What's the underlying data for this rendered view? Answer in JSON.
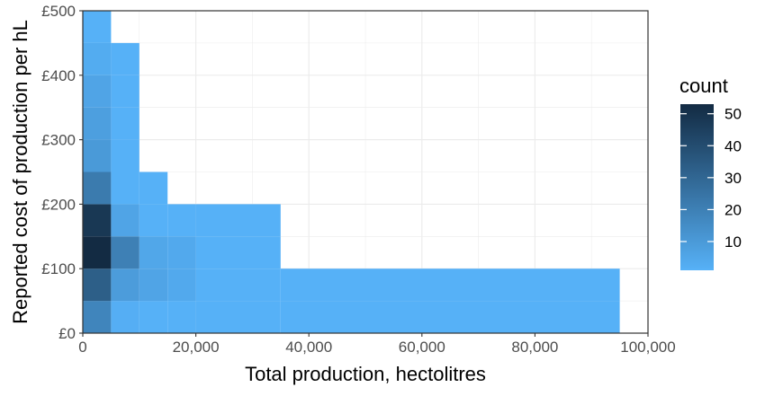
{
  "chart_data": {
    "type": "heatmap",
    "title": "",
    "xlabel": "Total production, hectolitres",
    "ylabel": "Reported cost of production per hL",
    "xlim": [
      0,
      100000
    ],
    "ylim": [
      0,
      500
    ],
    "x_ticks": [
      0,
      20000,
      40000,
      60000,
      80000,
      100000
    ],
    "x_tick_labels": [
      "0",
      "20,000",
      "40,000",
      "60,000",
      "80,000",
      "100,000"
    ],
    "y_ticks": [
      0,
      100,
      200,
      300,
      400,
      500
    ],
    "y_tick_labels": [
      "£0",
      "£100",
      "£200",
      "£300",
      "£400",
      "£500"
    ],
    "grid": true,
    "legend": {
      "title": "count",
      "position": "right",
      "ticks": [
        10,
        20,
        30,
        40,
        50
      ],
      "range": [
        1,
        53
      ],
      "color_low": "#56B1F7",
      "color_high": "#132B43"
    },
    "bin_width_x": 5000,
    "bin_width_y": 50,
    "bins": [
      {
        "x": [
          0,
          5000
        ],
        "y": [
          0,
          50
        ],
        "count": 18
      },
      {
        "x": [
          0,
          5000
        ],
        "y": [
          50,
          100
        ],
        "count": 33
      },
      {
        "x": [
          0,
          5000
        ],
        "y": [
          100,
          150
        ],
        "count": 53
      },
      {
        "x": [
          0,
          5000
        ],
        "y": [
          150,
          200
        ],
        "count": 48
      },
      {
        "x": [
          0,
          5000
        ],
        "y": [
          200,
          250
        ],
        "count": 22
      },
      {
        "x": [
          0,
          5000
        ],
        "y": [
          250,
          300
        ],
        "count": 10
      },
      {
        "x": [
          0,
          5000
        ],
        "y": [
          300,
          350
        ],
        "count": 8
      },
      {
        "x": [
          0,
          5000
        ],
        "y": [
          350,
          400
        ],
        "count": 6
      },
      {
        "x": [
          0,
          5000
        ],
        "y": [
          400,
          450
        ],
        "count": 3
      },
      {
        "x": [
          0,
          5000
        ],
        "y": [
          450,
          500
        ],
        "count": 1
      },
      {
        "x": [
          5000,
          10000
        ],
        "y": [
          0,
          50
        ],
        "count": 2
      },
      {
        "x": [
          5000,
          10000
        ],
        "y": [
          50,
          100
        ],
        "count": 9
      },
      {
        "x": [
          5000,
          10000
        ],
        "y": [
          100,
          150
        ],
        "count": 20
      },
      {
        "x": [
          5000,
          10000
        ],
        "y": [
          150,
          200
        ],
        "count": 6
      },
      {
        "x": [
          5000,
          10000
        ],
        "y": [
          200,
          250
        ],
        "count": 1
      },
      {
        "x": [
          5000,
          10000
        ],
        "y": [
          250,
          300
        ],
        "count": 1
      },
      {
        "x": [
          5000,
          10000
        ],
        "y": [
          300,
          350
        ],
        "count": 1
      },
      {
        "x": [
          5000,
          10000
        ],
        "y": [
          350,
          400
        ],
        "count": 1
      },
      {
        "x": [
          5000,
          10000
        ],
        "y": [
          400,
          450
        ],
        "count": 1
      },
      {
        "x": [
          10000,
          15000
        ],
        "y": [
          0,
          50
        ],
        "count": 1
      },
      {
        "x": [
          10000,
          15000
        ],
        "y": [
          50,
          100
        ],
        "count": 6
      },
      {
        "x": [
          10000,
          15000
        ],
        "y": [
          100,
          150
        ],
        "count": 5
      },
      {
        "x": [
          10000,
          15000
        ],
        "y": [
          150,
          200
        ],
        "count": 1
      },
      {
        "x": [
          10000,
          15000
        ],
        "y": [
          200,
          250
        ],
        "count": 1
      },
      {
        "x": [
          15000,
          20000
        ],
        "y": [
          0,
          50
        ],
        "count": 1
      },
      {
        "x": [
          15000,
          20000
        ],
        "y": [
          50,
          100
        ],
        "count": 4
      },
      {
        "x": [
          15000,
          20000
        ],
        "y": [
          100,
          150
        ],
        "count": 4
      },
      {
        "x": [
          15000,
          20000
        ],
        "y": [
          150,
          200
        ],
        "count": 1
      },
      {
        "x": [
          20000,
          35000
        ],
        "y": [
          0,
          50
        ],
        "count": 1
      },
      {
        "x": [
          20000,
          35000
        ],
        "y": [
          50,
          100
        ],
        "count": 1
      },
      {
        "x": [
          20000,
          35000
        ],
        "y": [
          100,
          150
        ],
        "count": 1
      },
      {
        "x": [
          20000,
          35000
        ],
        "y": [
          150,
          200
        ],
        "count": 1
      },
      {
        "x": [
          35000,
          95000
        ],
        "y": [
          0,
          50
        ],
        "count": 1
      },
      {
        "x": [
          35000,
          95000
        ],
        "y": [
          50,
          100
        ],
        "count": 1
      }
    ]
  }
}
